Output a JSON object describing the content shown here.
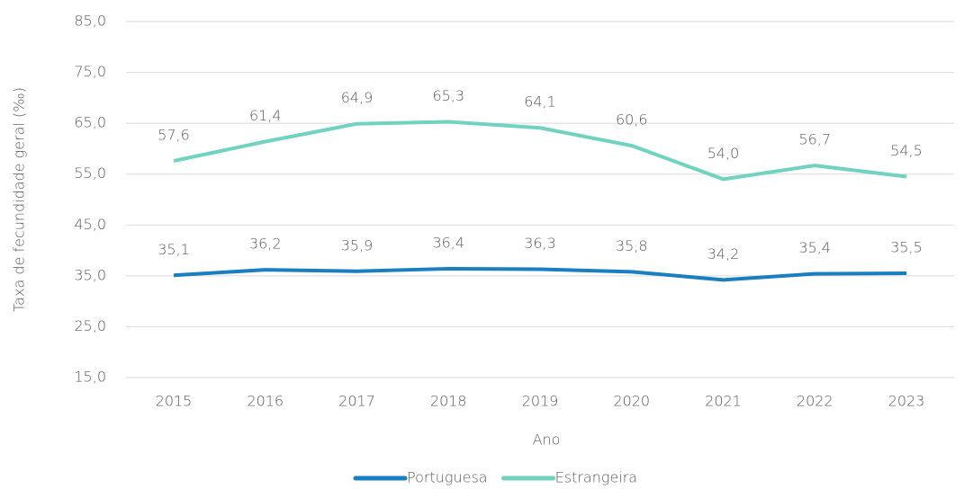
{
  "chart_data": {
    "type": "line",
    "x_label": "Ano",
    "y_label": "Taxa de fecundidade geral (‰)",
    "categories": [
      "2015",
      "2016",
      "2017",
      "2018",
      "2019",
      "2020",
      "2021",
      "2022",
      "2023"
    ],
    "series": [
      {
        "name": "Portuguesa",
        "color": "#1a7fc1",
        "values": [
          35.1,
          36.2,
          35.9,
          36.4,
          36.3,
          35.8,
          34.2,
          35.4,
          35.5
        ],
        "value_labels": [
          "35,1",
          "36,2",
          "35,9",
          "36,4",
          "36,3",
          "35,8",
          "34,2",
          "35,4",
          "35,5"
        ]
      },
      {
        "name": "Estrangeira",
        "color": "#6fd3bf",
        "values": [
          57.6,
          61.4,
          64.9,
          65.3,
          64.1,
          60.6,
          54.0,
          56.7,
          54.5
        ],
        "value_labels": [
          "57,6",
          "61,4",
          "64,9",
          "65,3",
          "64,1",
          "60,6",
          "54,0",
          "56,7",
          "54,5"
        ]
      }
    ],
    "ylim": [
      15,
      85
    ],
    "yticks": [
      {
        "value": 15,
        "label": "15,0"
      },
      {
        "value": 25,
        "label": "25,0"
      },
      {
        "value": 35,
        "label": "35,0"
      },
      {
        "value": 45,
        "label": "45,0"
      },
      {
        "value": 55,
        "label": "55,0"
      },
      {
        "value": 65,
        "label": "65,0"
      },
      {
        "value": 75,
        "label": "75,0"
      },
      {
        "value": 85,
        "label": "85,0"
      }
    ],
    "grid": true,
    "legend": "bottom"
  }
}
